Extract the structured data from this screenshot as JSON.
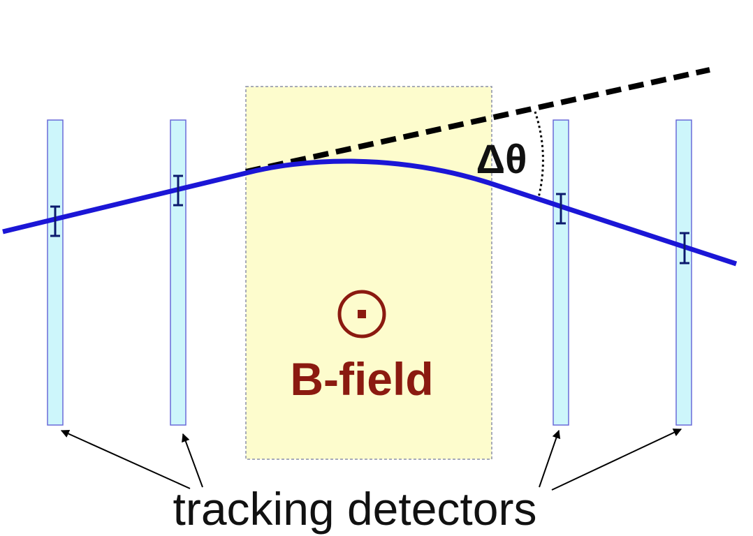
{
  "labels": {
    "delta_theta": "Δθ",
    "b_field": "B-field",
    "tracking_detectors": "tracking detectors"
  },
  "colors": {
    "background": "#ffffff",
    "field_region_fill": "#fdfccd",
    "field_region_border": "#8a8fa8",
    "detector_fill": "#cdf6fb",
    "detector_border": "#6a6ad8",
    "track": "#1b16d6",
    "hit_marker": "#0c1a6e",
    "field_symbol": "#8b1a10",
    "extrapolation": "#000000",
    "text": "#111111"
  },
  "icons": {
    "field_symbol": "field-out-of-page-icon"
  }
}
